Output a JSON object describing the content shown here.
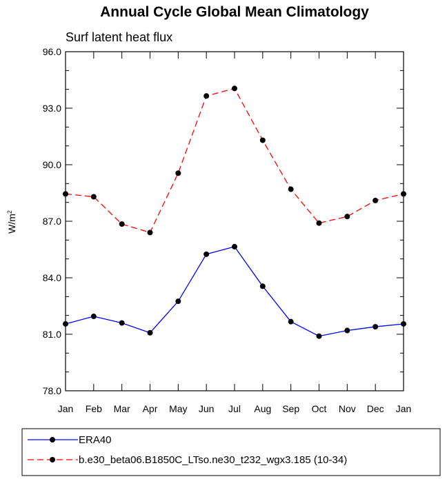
{
  "chart_data": {
    "type": "line",
    "title": "Annual Cycle Global Mean Climatology",
    "subtitle": "Surf latent heat flux",
    "ylabel_base": "W/m",
    "ylabel_sup": "2",
    "xlabel": "",
    "categories": [
      "Jan",
      "Feb",
      "Mar",
      "Apr",
      "May",
      "Jun",
      "Jul",
      "Aug",
      "Sep",
      "Oct",
      "Nov",
      "Dec",
      "Jan"
    ],
    "ylim": [
      78.0,
      96.0
    ],
    "yticks": [
      78.0,
      81.0,
      84.0,
      87.0,
      90.0,
      93.0,
      96.0
    ],
    "ytick_labels": [
      "78.0",
      "81.0",
      "84.0",
      "87.0",
      "90.0",
      "93.0",
      "96.0"
    ],
    "series": [
      {
        "name": "ERA40",
        "color": "#0000ff",
        "dash": "solid",
        "marker": "circle",
        "values": [
          81.55,
          81.95,
          81.6,
          81.08,
          82.75,
          85.25,
          85.65,
          83.55,
          81.67,
          80.9,
          81.2,
          81.4,
          81.55
        ]
      },
      {
        "name": "b.e30_beta06.B1850C_LTso.ne30_t232_wgx3.185 (10-34)",
        "color": "#ff0000",
        "dash": "dashed",
        "marker": "circle",
        "values": [
          88.45,
          88.3,
          86.85,
          86.4,
          89.55,
          93.65,
          94.05,
          91.3,
          88.7,
          86.9,
          87.25,
          88.1,
          88.45
        ]
      }
    ],
    "legend_position": "bottom",
    "grid": false
  }
}
